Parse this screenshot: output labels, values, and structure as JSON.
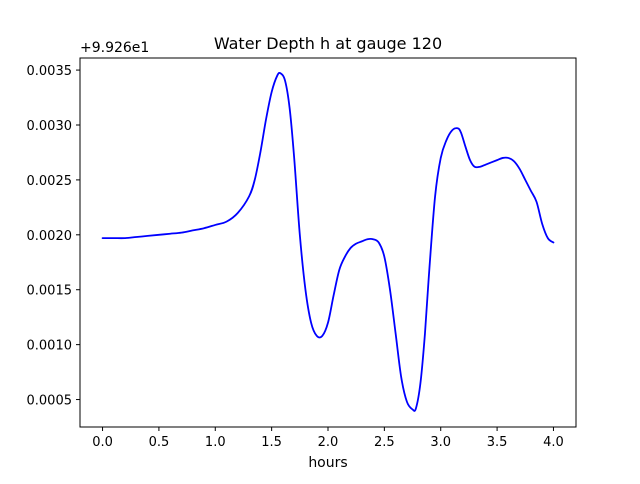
{
  "chart_data": {
    "type": "line",
    "title": "Water Depth h at gauge 120",
    "xlabel": "hours",
    "ylabel": "",
    "offset_label": "+9.926e1",
    "xlim": [
      -0.2,
      4.2
    ],
    "ylim": [
      0.00025,
      0.00361
    ],
    "xticks": [
      {
        "value": 0.0,
        "label": "0.0"
      },
      {
        "value": 0.5,
        "label": "0.5"
      },
      {
        "value": 1.0,
        "label": "1.0"
      },
      {
        "value": 1.5,
        "label": "1.5"
      },
      {
        "value": 2.0,
        "label": "2.0"
      },
      {
        "value": 2.5,
        "label": "2.5"
      },
      {
        "value": 3.0,
        "label": "3.0"
      },
      {
        "value": 3.5,
        "label": "3.5"
      },
      {
        "value": 4.0,
        "label": "4.0"
      }
    ],
    "yticks": [
      {
        "value": 0.0005,
        "label": "0.0005"
      },
      {
        "value": 0.001,
        "label": "0.0010"
      },
      {
        "value": 0.0015,
        "label": "0.0015"
      },
      {
        "value": 0.002,
        "label": "0.0020"
      },
      {
        "value": 0.0025,
        "label": "0.0025"
      },
      {
        "value": 0.003,
        "label": "0.0030"
      },
      {
        "value": 0.0035,
        "label": "0.0035"
      }
    ],
    "grid": false,
    "series": [
      {
        "color": "#0000ff",
        "x": [
          0.0,
          0.1,
          0.2,
          0.3,
          0.4,
          0.5,
          0.6,
          0.7,
          0.8,
          0.9,
          1.0,
          1.1,
          1.2,
          1.3,
          1.35,
          1.4,
          1.45,
          1.5,
          1.55,
          1.58,
          1.62,
          1.66,
          1.7,
          1.75,
          1.8,
          1.85,
          1.9,
          1.95,
          2.0,
          2.05,
          2.1,
          2.15,
          2.2,
          2.25,
          2.3,
          2.35,
          2.4,
          2.45,
          2.5,
          2.55,
          2.6,
          2.65,
          2.7,
          2.75,
          2.78,
          2.82,
          2.86,
          2.9,
          2.95,
          3.0,
          3.05,
          3.1,
          3.15,
          3.18,
          3.22,
          3.26,
          3.3,
          3.35,
          3.4,
          3.45,
          3.5,
          3.55,
          3.6,
          3.65,
          3.7,
          3.75,
          3.8,
          3.85,
          3.9,
          3.95,
          4.0
        ],
        "y": [
          0.00197,
          0.00197,
          0.00197,
          0.00198,
          0.00199,
          0.002,
          0.00201,
          0.00202,
          0.00204,
          0.00206,
          0.00209,
          0.00212,
          0.0022,
          0.00235,
          0.0025,
          0.00275,
          0.00305,
          0.0033,
          0.00345,
          0.00347,
          0.0034,
          0.00315,
          0.0027,
          0.002,
          0.0015,
          0.0012,
          0.00108,
          0.00108,
          0.0012,
          0.00145,
          0.00168,
          0.0018,
          0.00188,
          0.00192,
          0.00194,
          0.00196,
          0.00196,
          0.00193,
          0.0018,
          0.0015,
          0.0011,
          0.0007,
          0.00048,
          0.00041,
          0.00042,
          0.00065,
          0.0011,
          0.0017,
          0.00235,
          0.0027,
          0.00286,
          0.00295,
          0.00297,
          0.00293,
          0.0028,
          0.00268,
          0.00262,
          0.00262,
          0.00264,
          0.00266,
          0.00268,
          0.0027,
          0.0027,
          0.00267,
          0.0026,
          0.0025,
          0.0024,
          0.0023,
          0.0021,
          0.00197,
          0.00193
        ]
      }
    ]
  }
}
